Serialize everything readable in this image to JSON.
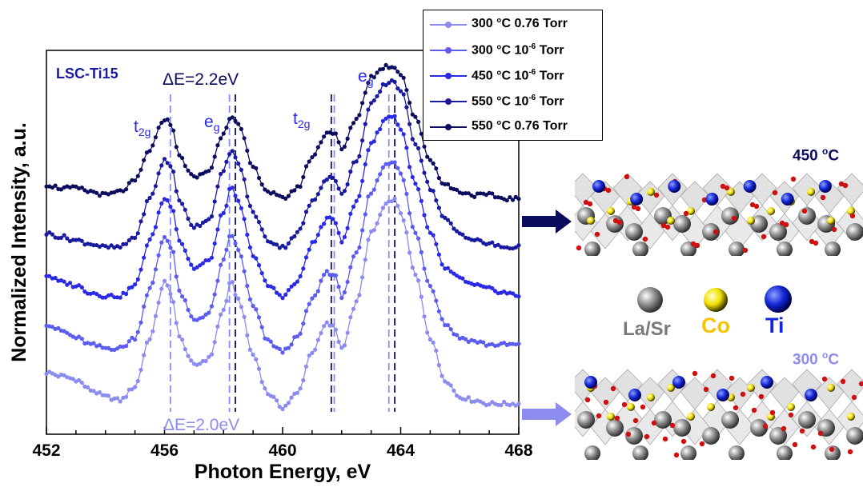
{
  "chart_data": {
    "type": "line",
    "title": "",
    "xlabel": "Photon Energy, eV",
    "ylabel": "Normalized Intensity, a.u.",
    "xlim": [
      452,
      468
    ],
    "ylim": [
      0,
      1
    ],
    "x_ticks": [
      452,
      456,
      460,
      464,
      468
    ],
    "x_tick_labels": [
      "452",
      "456",
      "460",
      "464",
      "468"
    ],
    "sample_label": "LSC-Ti15",
    "x": [
      452.0,
      452.5,
      453.0,
      453.5,
      454.0,
      454.5,
      455.0,
      455.5,
      456.0,
      456.25,
      456.5,
      457.0,
      457.5,
      458.0,
      458.25,
      458.5,
      459.0,
      459.5,
      460.0,
      460.5,
      461.0,
      461.5,
      461.75,
      462.0,
      462.5,
      463.0,
      463.5,
      463.75,
      464.0,
      464.5,
      465.0,
      465.5,
      466.0,
      466.5,
      467.0,
      467.5,
      468.0
    ],
    "series": [
      {
        "name": "300 °C 0.76 Torr",
        "color": "#8c8cf0",
        "values": [
          0.12,
          0.11,
          0.1,
          0.07,
          0.05,
          0.04,
          0.08,
          0.22,
          0.38,
          0.34,
          0.22,
          0.14,
          0.16,
          0.3,
          0.38,
          0.33,
          0.17,
          0.06,
          0.02,
          0.06,
          0.18,
          0.26,
          0.25,
          0.19,
          0.32,
          0.52,
          0.6,
          0.62,
          0.58,
          0.4,
          0.22,
          0.1,
          0.05,
          0.04,
          0.03,
          0.03,
          0.03
        ]
      },
      {
        "name": "300 °C 10^-6 Torr",
        "color": "#5c5cf0",
        "values": [
          0.26,
          0.24,
          0.22,
          0.2,
          0.19,
          0.19,
          0.22,
          0.36,
          0.51,
          0.48,
          0.35,
          0.27,
          0.29,
          0.44,
          0.52,
          0.47,
          0.31,
          0.21,
          0.18,
          0.22,
          0.33,
          0.41,
          0.4,
          0.34,
          0.46,
          0.64,
          0.72,
          0.73,
          0.69,
          0.52,
          0.37,
          0.26,
          0.22,
          0.21,
          0.2,
          0.2,
          0.2
        ]
      },
      {
        "name": "450 °C 10^-6 Torr",
        "color": "#2a2ae6",
        "values": [
          0.4,
          0.38,
          0.37,
          0.35,
          0.34,
          0.34,
          0.37,
          0.5,
          0.62,
          0.6,
          0.5,
          0.42,
          0.44,
          0.58,
          0.65,
          0.61,
          0.46,
          0.37,
          0.34,
          0.38,
          0.49,
          0.56,
          0.56,
          0.5,
          0.61,
          0.78,
          0.85,
          0.86,
          0.82,
          0.66,
          0.52,
          0.42,
          0.39,
          0.37,
          0.36,
          0.35,
          0.34
        ]
      },
      {
        "name": "550 °C 10^-6 Torr",
        "color": "#1a1aa0",
        "values": [
          0.52,
          0.51,
          0.5,
          0.49,
          0.48,
          0.48,
          0.51,
          0.62,
          0.73,
          0.71,
          0.61,
          0.54,
          0.56,
          0.7,
          0.76,
          0.72,
          0.58,
          0.5,
          0.48,
          0.52,
          0.61,
          0.68,
          0.68,
          0.63,
          0.73,
          0.89,
          0.95,
          0.96,
          0.93,
          0.78,
          0.65,
          0.56,
          0.52,
          0.5,
          0.49,
          0.48,
          0.48
        ]
      },
      {
        "name": "550 °C 0.76 Torr",
        "color": "#0c0c5e",
        "values": [
          0.66,
          0.65,
          0.65,
          0.64,
          0.63,
          0.64,
          0.67,
          0.76,
          0.85,
          0.83,
          0.74,
          0.68,
          0.7,
          0.81,
          0.86,
          0.83,
          0.71,
          0.64,
          0.62,
          0.65,
          0.74,
          0.81,
          0.81,
          0.76,
          0.85,
          0.97,
          1.0,
          1.0,
          0.98,
          0.85,
          0.73,
          0.66,
          0.64,
          0.63,
          0.63,
          0.62,
          0.62
        ]
      }
    ],
    "dashed_lines": [
      {
        "x": 456.2,
        "color": "#8c8cf0"
      },
      {
        "x": 458.2,
        "color": "#8c8cf0"
      },
      {
        "x": 458.4,
        "color": "#0c0c5e"
      },
      {
        "x": 461.75,
        "color": "#8c8cf0"
      },
      {
        "x": 461.65,
        "color": "#0c0c5e"
      },
      {
        "x": 463.6,
        "color": "#8c8cf0"
      },
      {
        "x": 463.8,
        "color": "#0c0c5e"
      }
    ],
    "annotations": {
      "delta_top": "ΔE=2.2eV",
      "delta_bottom": "ΔE=2.0eV",
      "t2g_left": "t2g",
      "eg_left": "eg",
      "t2g_right": "t2g",
      "eg_right": "eg"
    },
    "legend_position": "top-right",
    "grid": false
  },
  "legend": [
    {
      "temp": "300 °C",
      "pressure": "0.76 Torr",
      "exp": ""
    },
    {
      "temp": "300 °C",
      "pressure": "10",
      "exp": "-6",
      "unit": " Torr"
    },
    {
      "temp": "450 °C",
      "pressure": "10",
      "exp": "-6",
      "unit": " Torr"
    },
    {
      "temp": "550 °C",
      "pressure": "10",
      "exp": "-6",
      "unit": " Torr"
    },
    {
      "temp": "550 °C",
      "pressure": "0.76 Torr",
      "exp": ""
    }
  ],
  "side_panel": {
    "top_temp": "450 ",
    "top_temp_sup": "o",
    "top_temp_unit": "C",
    "bottom_temp": "300 ",
    "bottom_temp_sup": "o",
    "bottom_temp_unit": "C",
    "key_lasr": "La/Sr",
    "key_co": "Co",
    "key_ti": "Ti",
    "colors": {
      "dark_arrow": "#0c0c5e",
      "light_arrow": "#8c8cf0",
      "co": "#f5c400",
      "ti": "#1428d8",
      "lasr": "#7a7a7a"
    }
  }
}
